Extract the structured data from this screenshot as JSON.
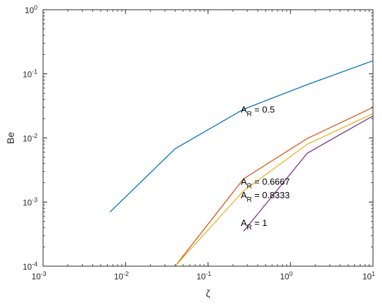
{
  "chart_data": {
    "type": "line",
    "xscale": "log",
    "yscale": "log",
    "xlim": [
      0.001,
      10
    ],
    "ylim": [
      0.0001,
      1
    ],
    "xlabel": "ζ",
    "ylabel": "Be",
    "grid": false,
    "x_ticks": [
      {
        "value": 0.001,
        "base": "10",
        "exp": "-3"
      },
      {
        "value": 0.01,
        "base": "10",
        "exp": "-2"
      },
      {
        "value": 0.1,
        "base": "10",
        "exp": "-1"
      },
      {
        "value": 1,
        "base": "10",
        "exp": "0"
      },
      {
        "value": 10,
        "base": "10",
        "exp": "1"
      }
    ],
    "y_ticks": [
      {
        "value": 0.0001,
        "base": "10",
        "exp": "-4"
      },
      {
        "value": 0.001,
        "base": "10",
        "exp": "-3"
      },
      {
        "value": 0.01,
        "base": "10",
        "exp": "-2"
      },
      {
        "value": 0.1,
        "base": "10",
        "exp": "-1"
      },
      {
        "value": 1,
        "base": "10",
        "exp": "0"
      }
    ],
    "series": [
      {
        "color": "#0072BD",
        "points": [
          [
            0.0065,
            0.0007
          ],
          [
            0.04,
            0.0068
          ],
          [
            0.27,
            0.028
          ],
          [
            1.6,
            0.068
          ],
          [
            10,
            0.16
          ]
        ]
      },
      {
        "color": "#D95319",
        "points": [
          [
            0.04,
            0.0001
          ],
          [
            0.27,
            0.0023
          ],
          [
            1.6,
            0.0098
          ],
          [
            10,
            0.03
          ]
        ]
      },
      {
        "color": "#EDB120",
        "points": [
          [
            0.04,
            0.0001
          ],
          [
            0.27,
            0.0015
          ],
          [
            1.6,
            0.008
          ],
          [
            10,
            0.024
          ]
        ]
      },
      {
        "color": "#7E2F8E",
        "points": [
          [
            0.27,
            0.00035
          ],
          [
            1.6,
            0.0058
          ],
          [
            10,
            0.022
          ]
        ]
      }
    ],
    "annotations": [
      {
        "main": "A",
        "sub": "R",
        "rest": " = 0.5",
        "x": 0.25,
        "y": 0.028
      },
      {
        "main": "A",
        "sub": "R",
        "rest": " = 0.6667",
        "x": 0.25,
        "y": 0.0021
      },
      {
        "main": "A",
        "sub": "R",
        "rest": " = 0.8333",
        "x": 0.25,
        "y": 0.0013
      },
      {
        "main": "A",
        "sub": "R",
        "rest": " = 1",
        "x": 0.25,
        "y": 0.00048
      }
    ]
  }
}
